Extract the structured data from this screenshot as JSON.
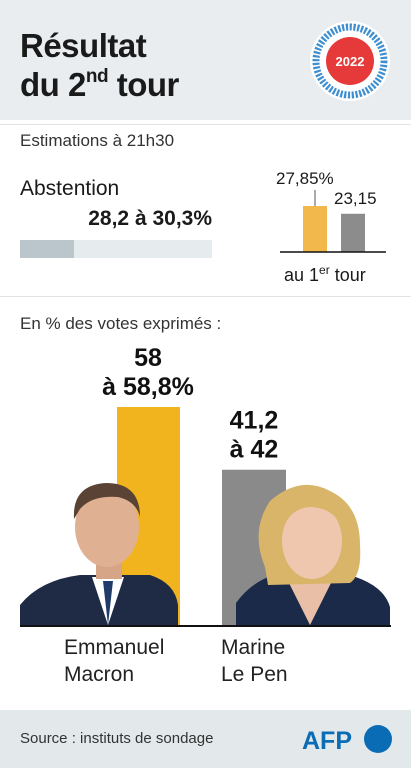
{
  "header": {
    "title_line1": "Résultat",
    "title_line2_pre": "du 2",
    "title_line2_sup": "nd",
    "title_line2_post": " tour",
    "badge_year": "2022"
  },
  "subtitle": "Estimations à 21h30",
  "abstention": {
    "label": "Abstention",
    "value_label": "28,2 à 30,3%",
    "fill_fraction": 0.283
  },
  "chart_data": [
    {
      "type": "bar",
      "title": "",
      "xlabel_pre": "au 1",
      "xlabel_sup": "er",
      "xlabel_post": " tour",
      "categories": [
        "Emmanuel Macron",
        "Marine Le Pen"
      ],
      "values": [
        27.85,
        23.15
      ],
      "value_labels": [
        "27,85%",
        "23,15"
      ],
      "colors": [
        "#f2b84b",
        "#8c8c8c"
      ],
      "ylim": [
        0,
        27.85
      ]
    },
    {
      "type": "bar",
      "title": "En % des votes exprimés :",
      "categories": [
        "Emmanuel Macron",
        "Marine Le Pen"
      ],
      "values": [
        58.4,
        41.6
      ],
      "value_labels": [
        [
          "58",
          "à 58,8%"
        ],
        [
          "41,2",
          "à 42"
        ]
      ],
      "colors": [
        "#f2b41e",
        "#8a8a8a"
      ],
      "ylim": [
        0,
        58.4
      ]
    }
  ],
  "candidates": [
    {
      "name": "Emmanuel\nMacron"
    },
    {
      "name": "Marine\nLe Pen"
    }
  ],
  "footer": {
    "source": "Source : instituts de sondage",
    "logo_text": "AFP"
  },
  "colors": {
    "header_bg": "#e9edf0",
    "badge_red": "#e63a3a",
    "badge_blue": "#3d8fd1",
    "afp_blue": "#0b6cb6"
  }
}
